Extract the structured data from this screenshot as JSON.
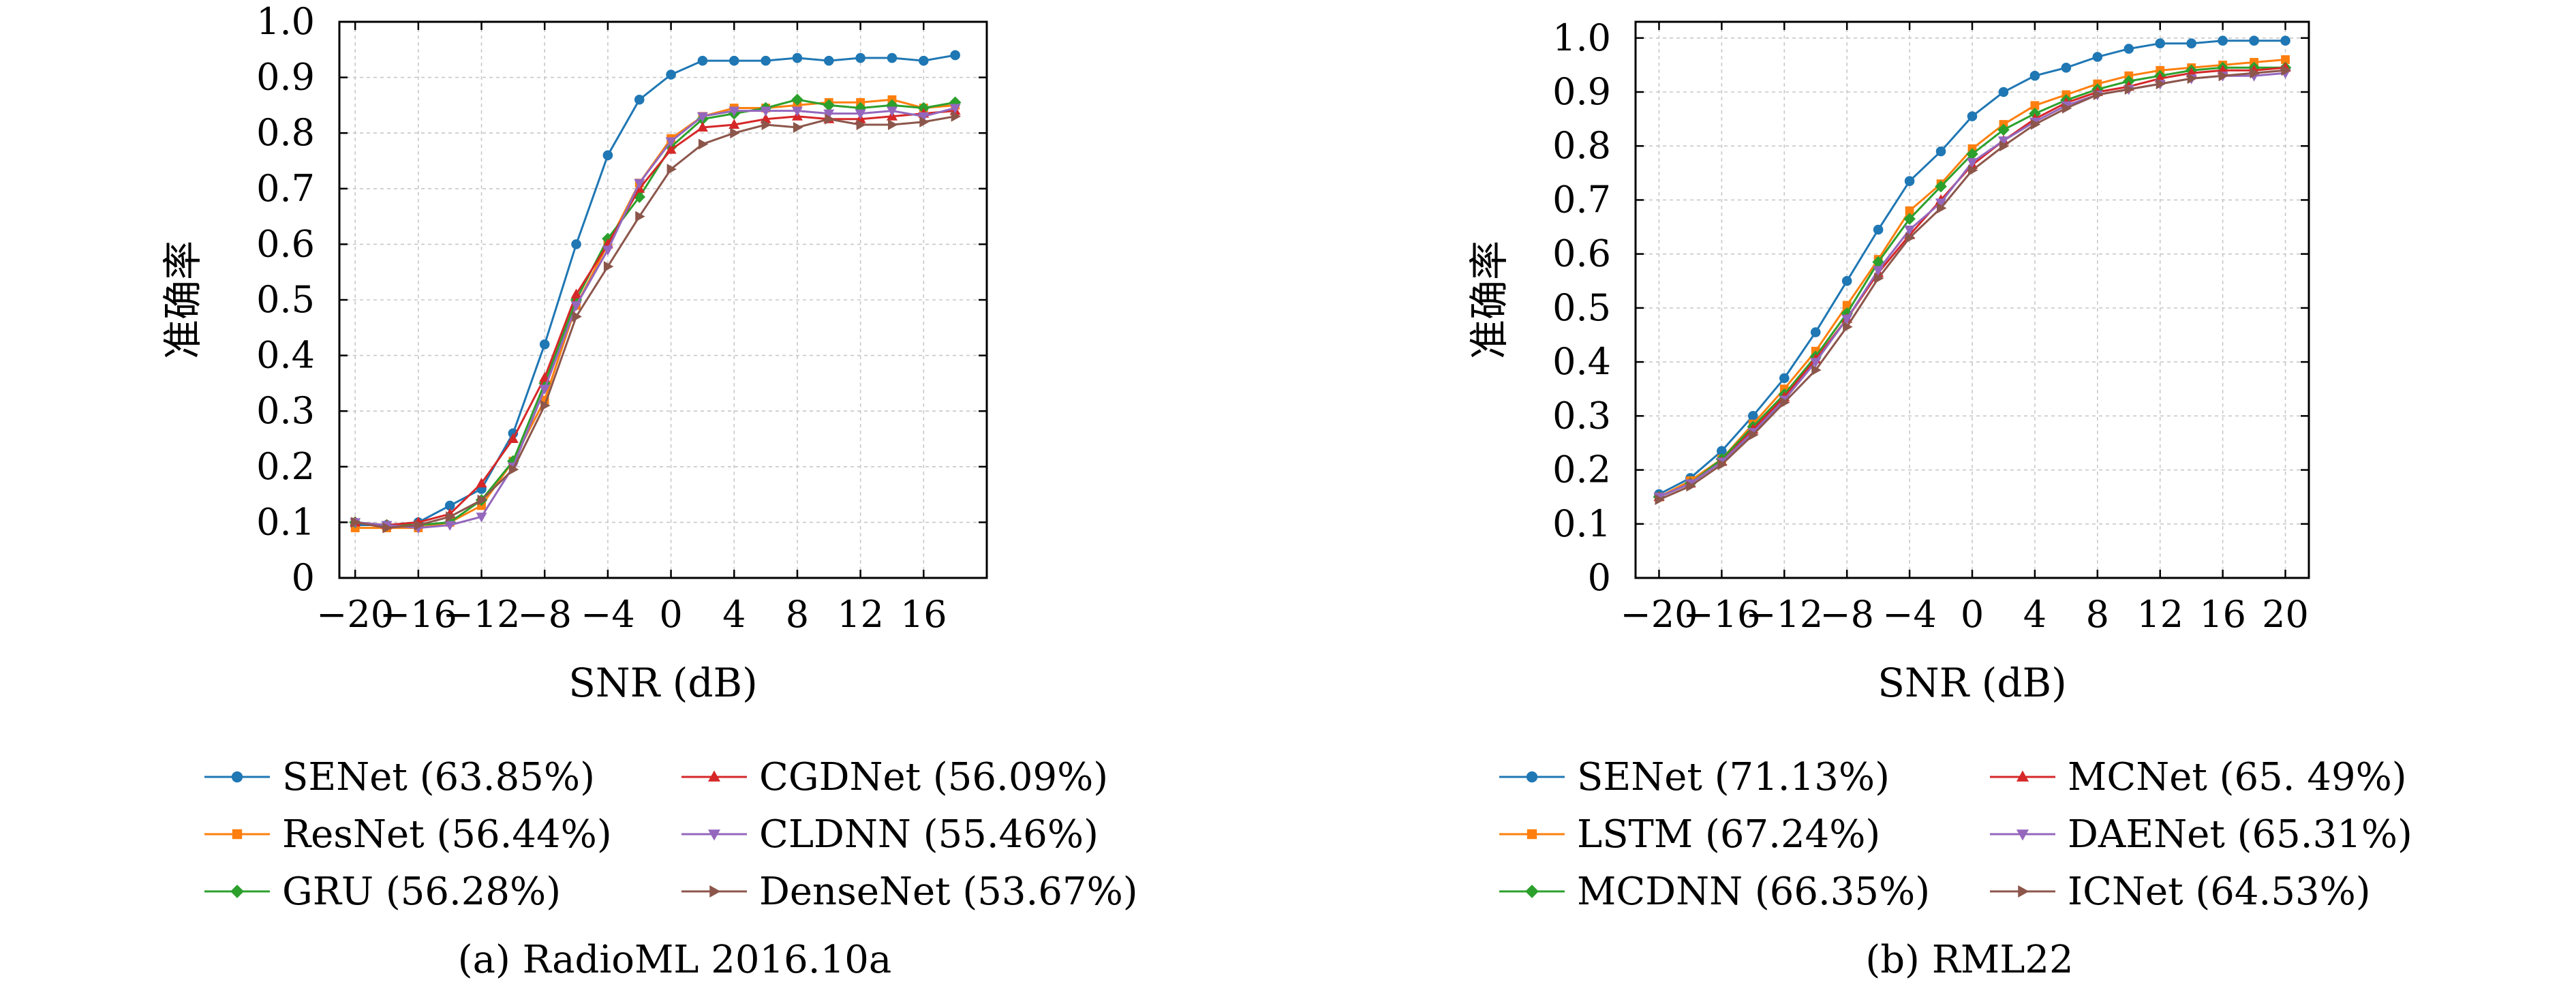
{
  "chart_data": [
    {
      "type": "line",
      "title": "",
      "caption": "(a) RadioML 2016.10a",
      "xlabel": "SNR (dB)",
      "ylabel": "准确率",
      "xlim": [
        -21,
        20
      ],
      "ylim": [
        0,
        1.0
      ],
      "xticks": [
        -20,
        -16,
        -12,
        -8,
        -4,
        0,
        4,
        8,
        12,
        16
      ],
      "xtick_labels": [
        "−20",
        "−16",
        "−12",
        "−8",
        "−4",
        "0",
        "4",
        "8",
        "12",
        "16"
      ],
      "yticks": [
        0,
        0.1,
        0.2,
        0.3,
        0.4,
        0.5,
        0.6,
        0.7,
        0.8,
        0.9,
        1.0
      ],
      "ytick_labels": [
        "0",
        "0.1",
        "0.2",
        "0.3",
        "0.4",
        "0.5",
        "0.6",
        "0.7",
        "0.8",
        "0.9",
        "1.0"
      ],
      "grid": true,
      "legend_placement": "below",
      "x": [
        -20,
        -18,
        -16,
        -14,
        -12,
        -10,
        -8,
        -6,
        -4,
        -2,
        0,
        2,
        4,
        6,
        8,
        10,
        12,
        14,
        16,
        18
      ],
      "series": [
        {
          "name": "SENet (63.85%)",
          "color": "#1f77b4",
          "marker": "circle",
          "values": [
            0.095,
            0.095,
            0.1,
            0.13,
            0.16,
            0.26,
            0.42,
            0.6,
            0.76,
            0.86,
            0.905,
            0.93,
            0.93,
            0.93,
            0.935,
            0.93,
            0.935,
            0.935,
            0.93,
            0.94
          ]
        },
        {
          "name": "ResNet (56.44%)",
          "color": "#ff7f0e",
          "marker": "square",
          "values": [
            0.09,
            0.09,
            0.09,
            0.1,
            0.13,
            0.21,
            0.32,
            0.49,
            0.6,
            0.71,
            0.79,
            0.83,
            0.845,
            0.845,
            0.85,
            0.855,
            0.855,
            0.86,
            0.845,
            0.85
          ]
        },
        {
          "name": "GRU (56.28%)",
          "color": "#2ca02c",
          "marker": "diamond",
          "values": [
            0.1,
            0.095,
            0.095,
            0.1,
            0.14,
            0.21,
            0.35,
            0.5,
            0.61,
            0.685,
            0.775,
            0.825,
            0.835,
            0.845,
            0.86,
            0.85,
            0.845,
            0.85,
            0.845,
            0.855
          ]
        },
        {
          "name": "CGDNet (56.09%)",
          "color": "#d62728",
          "marker": "triangle-up",
          "values": [
            0.1,
            0.095,
            0.1,
            0.115,
            0.17,
            0.25,
            0.36,
            0.51,
            0.6,
            0.7,
            0.77,
            0.81,
            0.815,
            0.825,
            0.83,
            0.825,
            0.825,
            0.83,
            0.835,
            0.84
          ]
        },
        {
          "name": "CLDNN (55.46%)",
          "color": "#9467bd",
          "marker": "triangle-down",
          "values": [
            0.1,
            0.095,
            0.09,
            0.095,
            0.11,
            0.2,
            0.34,
            0.49,
            0.59,
            0.71,
            0.785,
            0.83,
            0.84,
            0.84,
            0.84,
            0.835,
            0.835,
            0.84,
            0.83,
            0.845
          ]
        },
        {
          "name": "DenseNet (53.67%)",
          "color": "#8c564b",
          "marker": "triangle-right",
          "values": [
            0.1,
            0.09,
            0.095,
            0.11,
            0.14,
            0.195,
            0.31,
            0.47,
            0.56,
            0.65,
            0.735,
            0.78,
            0.8,
            0.815,
            0.81,
            0.825,
            0.815,
            0.815,
            0.82,
            0.83
          ]
        }
      ]
    },
    {
      "type": "line",
      "title": "",
      "caption": "(b) RML22",
      "xlabel": "SNR (dB)",
      "ylabel": "准确率",
      "xlim": [
        -21.5,
        21.5
      ],
      "ylim": [
        0,
        1.03
      ],
      "xticks": [
        -20,
        -16,
        -12,
        -8,
        -4,
        0,
        4,
        8,
        12,
        16,
        20
      ],
      "xtick_labels": [
        "−20",
        "−16",
        "−12",
        "−8",
        "−4",
        "0",
        "4",
        "8",
        "12",
        "16",
        "20"
      ],
      "yticks": [
        0,
        0.1,
        0.2,
        0.3,
        0.4,
        0.5,
        0.6,
        0.7,
        0.8,
        0.9,
        1.0
      ],
      "ytick_labels": [
        "0",
        "0.1",
        "0.2",
        "0.3",
        "0.4",
        "0.5",
        "0.6",
        "0.7",
        "0.8",
        "0.9",
        "1.0"
      ],
      "grid": true,
      "legend_placement": "below",
      "x": [
        -20,
        -18,
        -16,
        -14,
        -12,
        -10,
        -8,
        -6,
        -4,
        -2,
        0,
        2,
        4,
        6,
        8,
        10,
        12,
        14,
        16,
        18,
        20
      ],
      "series": [
        {
          "name": "SENet (71.13%)",
          "color": "#1f77b4",
          "marker": "circle",
          "values": [
            0.155,
            0.185,
            0.235,
            0.3,
            0.37,
            0.455,
            0.55,
            0.645,
            0.735,
            0.79,
            0.855,
            0.9,
            0.93,
            0.945,
            0.965,
            0.98,
            0.99,
            0.99,
            0.995,
            0.995,
            0.995
          ]
        },
        {
          "name": "LSTM (67.24%)",
          "color": "#ff7f0e",
          "marker": "square",
          "values": [
            0.15,
            0.18,
            0.22,
            0.285,
            0.35,
            0.42,
            0.505,
            0.59,
            0.68,
            0.73,
            0.795,
            0.84,
            0.875,
            0.895,
            0.915,
            0.93,
            0.94,
            0.945,
            0.95,
            0.955,
            0.96
          ]
        },
        {
          "name": "MCDNN (66.35%)",
          "color": "#2ca02c",
          "marker": "diamond",
          "values": [
            0.15,
            0.175,
            0.22,
            0.28,
            0.34,
            0.41,
            0.49,
            0.585,
            0.665,
            0.725,
            0.785,
            0.83,
            0.86,
            0.885,
            0.905,
            0.92,
            0.93,
            0.94,
            0.945,
            0.945,
            0.945
          ]
        },
        {
          "name": "MCNet (65. 49%)",
          "color": "#d62728",
          "marker": "triangle-up",
          "values": [
            0.15,
            0.175,
            0.215,
            0.275,
            0.335,
            0.405,
            0.48,
            0.565,
            0.635,
            0.7,
            0.765,
            0.81,
            0.85,
            0.88,
            0.9,
            0.91,
            0.925,
            0.935,
            0.94,
            0.94,
            0.945
          ]
        },
        {
          "name": "DAENet (65.31%)",
          "color": "#9467bd",
          "marker": "triangle-down",
          "values": [
            0.15,
            0.175,
            0.215,
            0.27,
            0.33,
            0.4,
            0.48,
            0.57,
            0.645,
            0.695,
            0.77,
            0.81,
            0.845,
            0.875,
            0.895,
            0.905,
            0.915,
            0.925,
            0.93,
            0.93,
            0.935
          ]
        },
        {
          "name": "ICNet (64.53%)",
          "color": "#8c564b",
          "marker": "triangle-right",
          "values": [
            0.145,
            0.17,
            0.21,
            0.265,
            0.325,
            0.385,
            0.465,
            0.555,
            0.63,
            0.685,
            0.755,
            0.8,
            0.84,
            0.87,
            0.895,
            0.905,
            0.915,
            0.925,
            0.93,
            0.935,
            0.94
          ]
        }
      ]
    }
  ]
}
